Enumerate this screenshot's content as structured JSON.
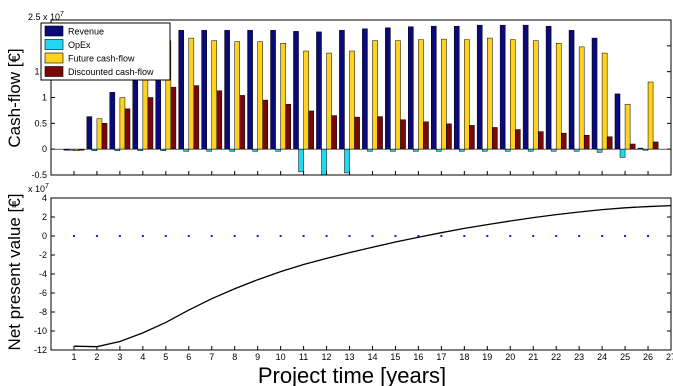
{
  "chart_data": [
    {
      "type": "bar",
      "ylabel": "Cash-flow [€]",
      "y_multiplier_label": "2.5 x 10",
      "y_multiplier_exp": "7",
      "ylim": [
        -0.5,
        2.5
      ],
      "yticks": [
        "-0.5",
        "0",
        "0.5",
        "1",
        "1.5",
        "2"
      ],
      "ytick_values": [
        -0.5,
        0,
        0.5,
        1,
        1.5,
        2
      ],
      "units": "x 10^7 €",
      "grid": false,
      "legend_position": "top-left",
      "categories": [
        1,
        2,
        3,
        4,
        5,
        6,
        7,
        8,
        9,
        10,
        11,
        12,
        13,
        14,
        15,
        16,
        17,
        18,
        19,
        20,
        21,
        22,
        23,
        24,
        25,
        26
      ],
      "series": [
        {
          "name": "Revenue",
          "color": "#0a0a7a",
          "values": [
            -0.02,
            0.63,
            1.1,
            1.5,
            2.25,
            2.3,
            2.3,
            2.3,
            2.3,
            2.3,
            2.28,
            2.27,
            2.3,
            2.33,
            2.35,
            2.37,
            2.38,
            2.38,
            2.4,
            2.4,
            2.4,
            2.38,
            2.3,
            2.15,
            1.07,
            0.02
          ]
        },
        {
          "name": "OpEx",
          "color": "#22d8f0",
          "values": [
            -0.02,
            -0.03,
            -0.03,
            -0.03,
            -0.03,
            -0.04,
            -0.04,
            -0.04,
            -0.04,
            -0.04,
            -0.44,
            -0.5,
            -0.46,
            -0.04,
            -0.04,
            -0.04,
            -0.04,
            -0.04,
            -0.04,
            -0.04,
            -0.04,
            -0.04,
            -0.04,
            -0.06,
            -0.16,
            -0.02
          ]
        },
        {
          "name": "Future cash-flow",
          "color": "#ffd21f",
          "values": [
            -0.03,
            0.59,
            1.0,
            1.4,
            2.1,
            2.15,
            2.1,
            2.08,
            2.08,
            2.05,
            1.9,
            1.86,
            1.9,
            2.1,
            2.1,
            2.12,
            2.13,
            2.12,
            2.15,
            2.12,
            2.1,
            2.05,
            1.98,
            1.86,
            0.87,
            1.3
          ]
        },
        {
          "name": "Discounted cash-flow",
          "color": "#7a0808",
          "values": [
            -0.02,
            0.5,
            0.78,
            1.0,
            1.2,
            1.23,
            1.13,
            1.04,
            0.95,
            0.87,
            0.74,
            0.65,
            0.62,
            0.63,
            0.57,
            0.53,
            0.49,
            0.46,
            0.42,
            0.38,
            0.34,
            0.31,
            0.27,
            0.24,
            0.1,
            0.14
          ]
        }
      ]
    },
    {
      "type": "line",
      "ylabel": "Net present value [€]",
      "xlabel": "Project time [years]",
      "y_multiplier_label": "x 10",
      "y_multiplier_exp": "7",
      "ylim": [
        -1.2,
        0.4
      ],
      "yticks": [
        "-12",
        "-10",
        "-8",
        "-6",
        "-4",
        "-2",
        "0",
        "2",
        "4"
      ],
      "ytick_values": [
        -1.2,
        -1.0,
        -0.8,
        -0.6,
        -0.4,
        -0.2,
        0,
        0.2,
        0.4
      ],
      "xlim": [
        0,
        27
      ],
      "xticks": [
        "1",
        "2",
        "3",
        "4",
        "5",
        "6",
        "7",
        "8",
        "9",
        "10",
        "11",
        "12",
        "13",
        "14",
        "15",
        "16",
        "17",
        "18",
        "19",
        "20",
        "21",
        "22",
        "23",
        "24",
        "25",
        "26",
        "27"
      ],
      "units": "x 10^7 €",
      "grid": false,
      "zero_marker_color": "#1a1af0",
      "series": [
        {
          "name": "Net present value",
          "color": "#000000",
          "x": [
            1,
            2,
            3,
            4,
            5,
            6,
            7,
            8,
            9,
            10,
            11,
            12,
            13,
            14,
            15,
            16,
            17,
            18,
            19,
            20,
            21,
            22,
            23,
            24,
            25,
            26,
            27
          ],
          "values": [
            -1.16,
            -1.165,
            -1.11,
            -1.02,
            -0.91,
            -0.78,
            -0.66,
            -0.555,
            -0.46,
            -0.375,
            -0.3,
            -0.235,
            -0.175,
            -0.118,
            -0.063,
            -0.013,
            0.035,
            0.08,
            0.12,
            0.158,
            0.193,
            0.225,
            0.253,
            0.278,
            0.297,
            0.31,
            0.32
          ]
        }
      ]
    }
  ]
}
